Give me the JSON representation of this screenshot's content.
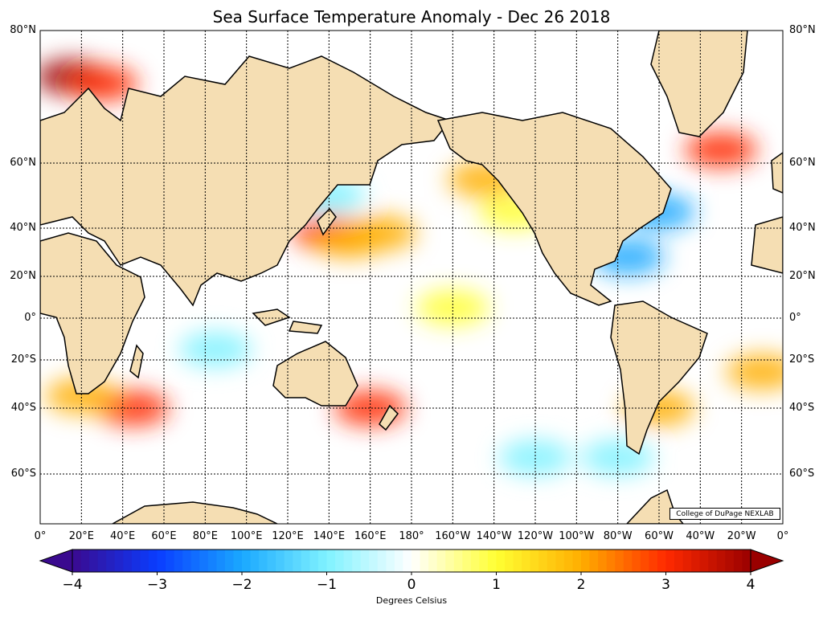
{
  "title": "Sea Surface Temperature Anomaly - Dec 26 2018",
  "credit": "College of DuPage NEXLAB",
  "lat_labels": [
    {
      "text": "80°N",
      "lat": 80
    },
    {
      "text": "60°N",
      "lat": 60
    },
    {
      "text": "40°N",
      "lat": 40
    },
    {
      "text": "20°N",
      "lat": 20
    },
    {
      "text": "0°",
      "lat": 0
    },
    {
      "text": "20°S",
      "lat": -20
    },
    {
      "text": "40°S",
      "lat": -40
    },
    {
      "text": "60°S",
      "lat": -60
    }
  ],
  "lon_labels": [
    {
      "text": "0°",
      "lon": 0
    },
    {
      "text": "20°E",
      "lon": 20
    },
    {
      "text": "40°E",
      "lon": 40
    },
    {
      "text": "60°E",
      "lon": 60
    },
    {
      "text": "80°E",
      "lon": 80
    },
    {
      "text": "100°E",
      "lon": 100
    },
    {
      "text": "120°E",
      "lon": 120
    },
    {
      "text": "140°E",
      "lon": 140
    },
    {
      "text": "160°E",
      "lon": 160
    },
    {
      "text": "180°",
      "lon": 180
    },
    {
      "text": "160°W",
      "lon": 200
    },
    {
      "text": "140°W",
      "lon": 220
    },
    {
      "text": "120°W",
      "lon": 240
    },
    {
      "text": "100°W",
      "lon": 260
    },
    {
      "text": "80°W",
      "lon": 280
    },
    {
      "text": "60°W",
      "lon": 300
    },
    {
      "text": "40°W",
      "lon": 320
    },
    {
      "text": "20°W",
      "lon": 340
    },
    {
      "text": "0°",
      "lon": 360
    }
  ],
  "colorbar": {
    "label": "Degrees Celsius",
    "min": -4,
    "max": 4,
    "ticks": [
      {
        "text": "−4",
        "value": -4
      },
      {
        "text": "−3",
        "value": -3
      },
      {
        "text": "−2",
        "value": -2
      },
      {
        "text": "−1",
        "value": -1
      },
      {
        "text": "0",
        "value": 0
      },
      {
        "text": "1",
        "value": 1
      },
      {
        "text": "2",
        "value": 2
      },
      {
        "text": "3",
        "value": 3
      },
      {
        "text": "4",
        "value": 4
      }
    ],
    "stops": [
      "#3a0a8f",
      "#0a3cff",
      "#1aa8ff",
      "#7ff2ff",
      "#ffffff",
      "#ffff33",
      "#ffae00",
      "#ff2a00",
      "#9a0000"
    ]
  },
  "colors": {
    "land": "#f5deb3",
    "coast": "#000000",
    "ocean_neutral": "#ffffff"
  },
  "anomaly_regions": [
    {
      "lon": 15,
      "lat": 73,
      "value": 3.5
    },
    {
      "lon": 30,
      "lat": 72,
      "value": 2.5
    },
    {
      "lon": 140,
      "lat": 38,
      "value": 2.5
    },
    {
      "lon": 150,
      "lat": 35,
      "value": 1.8
    },
    {
      "lon": 165,
      "lat": 38,
      "value": 1.5
    },
    {
      "lon": 215,
      "lat": 55,
      "value": 1.5
    },
    {
      "lon": 230,
      "lat": 45,
      "value": 1.0
    },
    {
      "lon": 160,
      "lat": -40,
      "value": 2.8
    },
    {
      "lon": 45,
      "lat": -40,
      "value": 2.5
    },
    {
      "lon": 20,
      "lat": -35,
      "value": 2.0
    },
    {
      "lon": 300,
      "lat": -40,
      "value": 2.0
    },
    {
      "lon": 350,
      "lat": -25,
      "value": 2.2
    },
    {
      "lon": 300,
      "lat": 45,
      "value": -2.5
    },
    {
      "lon": 285,
      "lat": 28,
      "value": -2.5
    },
    {
      "lon": 85,
      "lat": -15,
      "value": -1.0
    },
    {
      "lon": 240,
      "lat": -55,
      "value": -1.5
    },
    {
      "lon": 280,
      "lat": -55,
      "value": -1.2
    },
    {
      "lon": 140,
      "lat": 50,
      "value": -1.0
    },
    {
      "lon": 200,
      "lat": 5,
      "value": 1.2
    },
    {
      "lon": 330,
      "lat": 62,
      "value": 2.5
    }
  ]
}
